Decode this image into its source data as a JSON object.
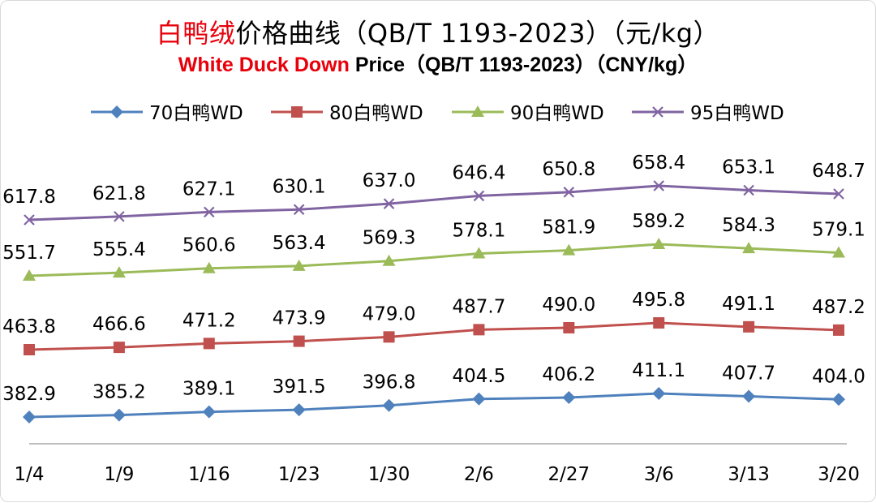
{
  "title": {
    "cn_highlight": "白鸭绒",
    "cn_rest": "价格曲线（QB/T 1193-2023）（元/kg）",
    "en_highlight": "White Duck Down",
    "en_rest": " Price（QB/T 1193-2023）（CNY/kg）"
  },
  "chart_data": {
    "type": "line",
    "categories": [
      "1/4",
      "1/9",
      "1/16",
      "1/23",
      "1/30",
      "2/6",
      "2/27",
      "3/6",
      "3/13",
      "3/20"
    ],
    "series": [
      {
        "name": "70白鸭WD",
        "color": "#4f81bd",
        "marker": "diamond",
        "values": [
          382.9,
          385.2,
          389.1,
          391.5,
          396.8,
          404.5,
          406.2,
          411.1,
          407.7,
          404.0
        ]
      },
      {
        "name": "80白鸭WD",
        "color": "#c0504d",
        "marker": "square",
        "values": [
          463.8,
          466.6,
          471.2,
          473.9,
          479.0,
          487.7,
          490.0,
          495.8,
          491.1,
          487.2
        ]
      },
      {
        "name": "90白鸭WD",
        "color": "#9bbb59",
        "marker": "triangle",
        "values": [
          551.7,
          555.4,
          560.6,
          563.4,
          569.3,
          578.1,
          581.9,
          589.2,
          584.3,
          579.1
        ]
      },
      {
        "name": "95白鸭WD",
        "color": "#8064a2",
        "marker": "x",
        "values": [
          617.8,
          621.8,
          627.1,
          630.1,
          637.0,
          646.4,
          650.8,
          658.4,
          653.1,
          648.7
        ]
      }
    ],
    "legend_position": "top",
    "grid": false,
    "value_labels": true
  }
}
